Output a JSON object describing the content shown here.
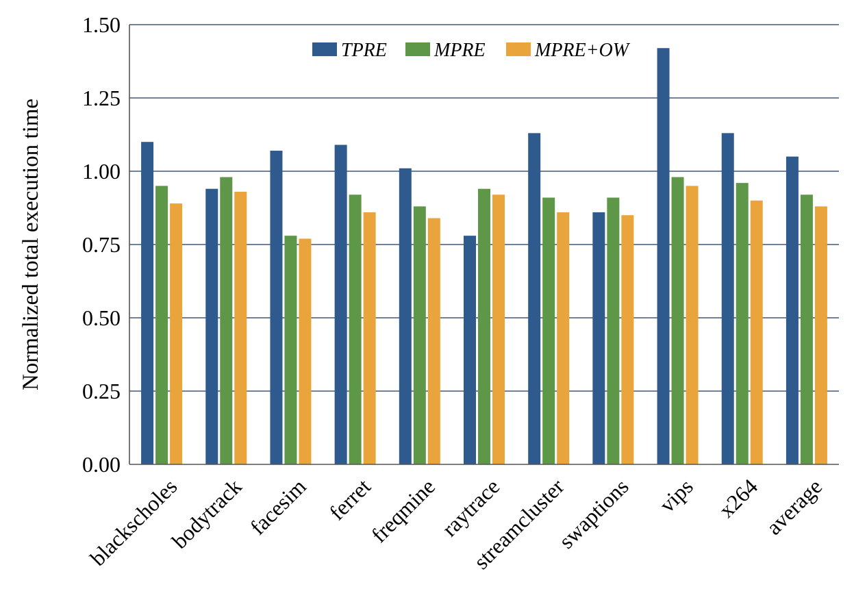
{
  "chart_data": {
    "type": "bar",
    "title": "",
    "xlabel": "",
    "ylabel": "Normalized total execution time",
    "ylim": [
      0,
      1.5
    ],
    "yticks": [
      "0.00",
      "0.25",
      "0.50",
      "0.75",
      "1.00",
      "1.25",
      "1.50"
    ],
    "grid": true,
    "legend_position": "top-center",
    "categories": [
      "blackscholes",
      "bodytrack",
      "facesim",
      "ferret",
      "freqmine",
      "raytrace",
      "streamcluster",
      "swaptions",
      "vips",
      "x264",
      "average"
    ],
    "series": [
      {
        "name": "TPRE",
        "color": "#2e5a8e",
        "values": [
          1.1,
          0.94,
          1.07,
          1.09,
          1.01,
          0.78,
          1.13,
          0.86,
          1.42,
          1.13,
          1.05
        ]
      },
      {
        "name": "MPRE",
        "color": "#5e9748",
        "values": [
          0.95,
          0.98,
          0.78,
          0.92,
          0.88,
          0.94,
          0.91,
          0.91,
          0.98,
          0.96,
          0.92
        ]
      },
      {
        "name": "MPRE+OW",
        "color": "#e9a43c",
        "values": [
          0.89,
          0.93,
          0.77,
          0.86,
          0.84,
          0.92,
          0.86,
          0.85,
          0.95,
          0.9,
          0.88
        ]
      }
    ]
  }
}
